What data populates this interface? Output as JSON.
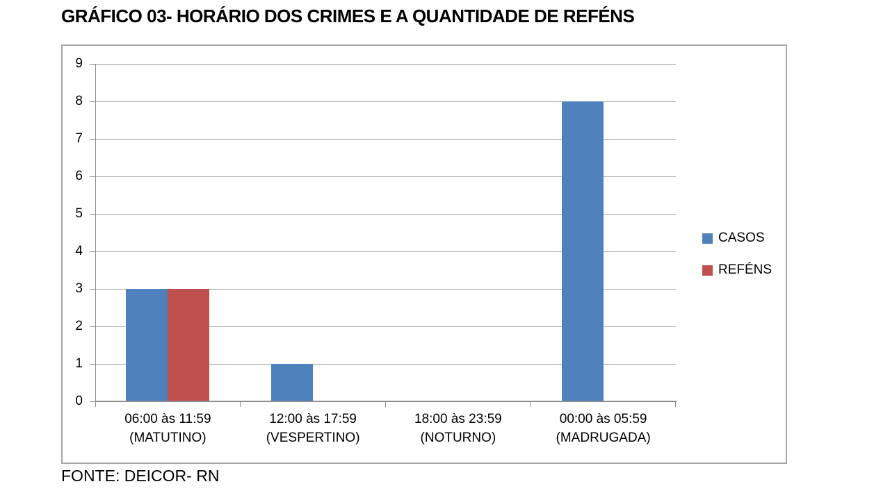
{
  "chart_data": {
    "type": "bar",
    "title": "GRÁFICO 03- HORÁRIO DOS CRIMES E A QUANTIDADE DE REFÉNS",
    "source_note": "FONTE: DEICOR- RN",
    "categories": [
      {
        "line1": "06:00 às 11:59",
        "line2": "(MATUTINO)"
      },
      {
        "line1": "12:00 às 17:59",
        "line2": "(VESPERTINO)"
      },
      {
        "line1": "18:00 às 23:59",
        "line2": "(NOTURNO)"
      },
      {
        "line1": "00:00 às 05:59",
        "line2": "(MADRUGADA)"
      }
    ],
    "series": [
      {
        "name": "CASOS",
        "color": "#4f81bd",
        "values": [
          3,
          1,
          0,
          8
        ]
      },
      {
        "name": "REFÉNS",
        "color": "#c0504d",
        "values": [
          3,
          0,
          0,
          0
        ]
      }
    ],
    "ylim": [
      0,
      9
    ],
    "ytick_step": 1,
    "yticks": [
      0,
      1,
      2,
      3,
      4,
      5,
      6,
      7,
      8,
      9
    ],
    "grid": true,
    "legend_position": "right",
    "colors": {
      "gridline": "#a6a6a6",
      "axis": "#8c8c8c",
      "frame_border": "#a6a6a6",
      "text": "#000000",
      "background": "#ffffff"
    }
  }
}
